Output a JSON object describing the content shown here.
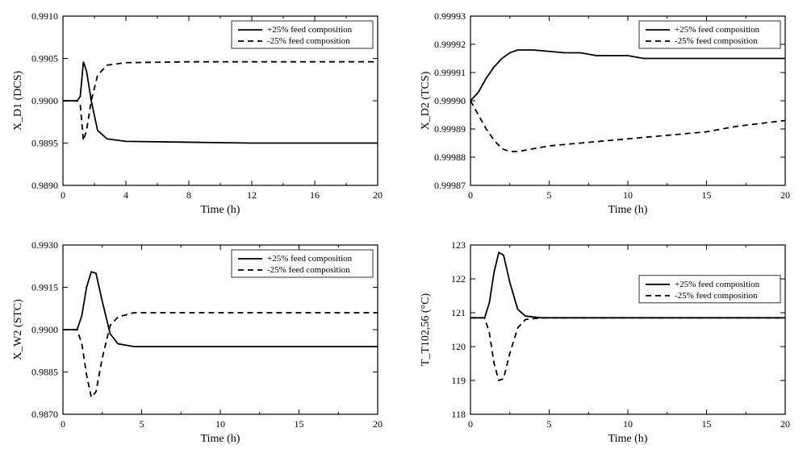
{
  "global": {
    "background_color": "#ffffff",
    "line_color": "#000000",
    "font_family": "Times New Roman",
    "legend_solid_label": "+25% feed composition",
    "legend_dash_label": "-25% feed composition",
    "dash_pattern": "7 5",
    "solid_width": 1.8,
    "dash_width": 1.8
  },
  "panels": [
    {
      "id": "tl",
      "xlabel": "Time (h)",
      "ylabel": "X_D1 (DCS)",
      "xlim": [
        0,
        20
      ],
      "xticks": [
        0,
        4,
        8,
        12,
        16,
        20
      ],
      "ylim": [
        0.989,
        0.991
      ],
      "yticks": [
        0.989,
        0.9895,
        0.99,
        0.9905,
        0.991
      ],
      "ytick_fmt": 4,
      "legend_pos": "top-right",
      "solid": [
        [
          0,
          0.99
        ],
        [
          0.9,
          0.99
        ],
        [
          1.1,
          0.99005
        ],
        [
          1.3,
          0.99046
        ],
        [
          1.5,
          0.99035
        ],
        [
          1.8,
          0.99
        ],
        [
          2.2,
          0.98965
        ],
        [
          2.8,
          0.98955
        ],
        [
          4,
          0.98952
        ],
        [
          8,
          0.98951
        ],
        [
          12,
          0.9895
        ],
        [
          16,
          0.9895
        ],
        [
          20,
          0.9895
        ]
      ],
      "dash": [
        [
          0,
          0.99
        ],
        [
          0.9,
          0.99
        ],
        [
          1.1,
          0.98995
        ],
        [
          1.3,
          0.98953
        ],
        [
          1.5,
          0.98965
        ],
        [
          1.8,
          0.99
        ],
        [
          2.2,
          0.9903
        ],
        [
          2.8,
          0.99042
        ],
        [
          4,
          0.99045
        ],
        [
          8,
          0.99046
        ],
        [
          12,
          0.99046
        ],
        [
          16,
          0.99046
        ],
        [
          20,
          0.99046
        ]
      ]
    },
    {
      "id": "tr",
      "xlabel": "Time (h)",
      "ylabel": "X_D2 (TCS)",
      "xlim": [
        0,
        20
      ],
      "xticks": [
        0,
        5,
        10,
        15,
        20
      ],
      "ylim": [
        0.99987,
        0.99993
      ],
      "yticks": [
        0.99987,
        0.99988,
        0.99989,
        0.9999,
        0.99991,
        0.99992,
        0.99993
      ],
      "ytick_fmt": 5,
      "legend_pos": "top-right",
      "solid": [
        [
          0,
          0.9999
        ],
        [
          0.5,
          0.999903
        ],
        [
          1,
          0.999908
        ],
        [
          1.5,
          0.999912
        ],
        [
          2,
          0.999915
        ],
        [
          2.5,
          0.999917
        ],
        [
          3,
          0.999918
        ],
        [
          4,
          0.999918
        ],
        [
          6,
          0.999917
        ],
        [
          7,
          0.999917
        ],
        [
          8,
          0.999916
        ],
        [
          9,
          0.999916
        ],
        [
          10,
          0.999916
        ],
        [
          11,
          0.999915
        ],
        [
          12,
          0.999915
        ],
        [
          15,
          0.999915
        ],
        [
          20,
          0.999915
        ]
      ],
      "dash": [
        [
          0,
          0.9999
        ],
        [
          0.5,
          0.999895
        ],
        [
          1,
          0.99989
        ],
        [
          1.5,
          0.999886
        ],
        [
          2,
          0.999883
        ],
        [
          2.5,
          0.999882
        ],
        [
          3,
          0.999882
        ],
        [
          4,
          0.999883
        ],
        [
          5,
          0.999884
        ],
        [
          7,
          0.999885
        ],
        [
          9,
          0.999886
        ],
        [
          11,
          0.999887
        ],
        [
          13,
          0.999888
        ],
        [
          15,
          0.999889
        ],
        [
          17,
          0.999891
        ],
        [
          20,
          0.999893
        ]
      ]
    },
    {
      "id": "bl",
      "xlabel": "Time (h)",
      "ylabel": "X_W2 (STC)",
      "xlim": [
        0,
        20
      ],
      "xticks": [
        0,
        5,
        10,
        15,
        20
      ],
      "ylim": [
        0.987,
        0.993
      ],
      "yticks": [
        0.987,
        0.9885,
        0.99,
        0.9915,
        0.993
      ],
      "ytick_fmt": 4,
      "legend_pos": "top-right",
      "solid": [
        [
          0,
          0.99
        ],
        [
          0.9,
          0.99
        ],
        [
          1.2,
          0.9905
        ],
        [
          1.5,
          0.9915
        ],
        [
          1.8,
          0.99205
        ],
        [
          2.1,
          0.992
        ],
        [
          2.5,
          0.991
        ],
        [
          3.0,
          0.98985
        ],
        [
          3.5,
          0.9895
        ],
        [
          4.5,
          0.9894
        ],
        [
          6,
          0.9894
        ],
        [
          10,
          0.9894
        ],
        [
          15,
          0.9894
        ],
        [
          20,
          0.9894
        ]
      ],
      "dash": [
        [
          0,
          0.99
        ],
        [
          0.9,
          0.99
        ],
        [
          1.2,
          0.9895
        ],
        [
          1.5,
          0.9884
        ],
        [
          1.8,
          0.9876
        ],
        [
          2.1,
          0.9878
        ],
        [
          2.5,
          0.989
        ],
        [
          3.0,
          0.99015
        ],
        [
          3.5,
          0.99045
        ],
        [
          4.5,
          0.9906
        ],
        [
          6,
          0.9906
        ],
        [
          10,
          0.9906
        ],
        [
          15,
          0.9906
        ],
        [
          20,
          0.9906
        ]
      ]
    },
    {
      "id": "br",
      "xlabel": "Time (h)",
      "ylabel": "T_T102,56 (°C)",
      "xlim": [
        0,
        20
      ],
      "xticks": [
        0,
        5,
        10,
        15,
        20
      ],
      "ylim": [
        118,
        123
      ],
      "yticks": [
        118,
        119,
        120,
        121,
        122,
        123
      ],
      "ytick_fmt": 0,
      "legend_pos": "mid-right",
      "solid": [
        [
          0,
          120.85
        ],
        [
          0.9,
          120.85
        ],
        [
          1.2,
          121.3
        ],
        [
          1.5,
          122.2
        ],
        [
          1.8,
          122.78
        ],
        [
          2.1,
          122.7
        ],
        [
          2.5,
          121.9
        ],
        [
          3.0,
          121.1
        ],
        [
          3.5,
          120.9
        ],
        [
          4.5,
          120.85
        ],
        [
          6,
          120.85
        ],
        [
          10,
          120.85
        ],
        [
          15,
          120.85
        ],
        [
          20,
          120.85
        ]
      ],
      "dash": [
        [
          0,
          120.85
        ],
        [
          0.9,
          120.85
        ],
        [
          1.2,
          120.4
        ],
        [
          1.5,
          119.5
        ],
        [
          1.8,
          119.0
        ],
        [
          2.1,
          119.05
        ],
        [
          2.5,
          119.8
        ],
        [
          3.0,
          120.55
        ],
        [
          3.5,
          120.8
        ],
        [
          4.5,
          120.85
        ],
        [
          6,
          120.85
        ],
        [
          10,
          120.85
        ],
        [
          15,
          120.85
        ],
        [
          20,
          120.85
        ]
      ]
    }
  ]
}
